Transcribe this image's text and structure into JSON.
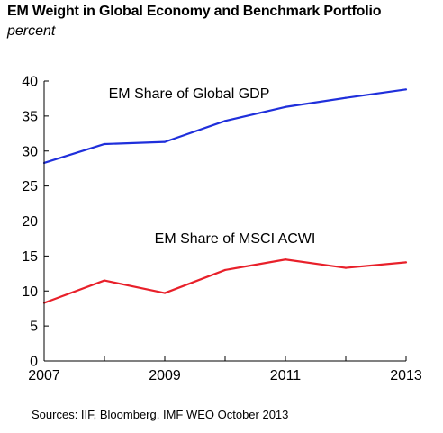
{
  "header": {
    "title": "EM Weight in Global Economy and Benchmark Portfolio",
    "subtitle": "percent"
  },
  "footer": {
    "source": "Sources: IIF, Bloomberg, IMF WEO October 2013"
  },
  "chart_data": {
    "type": "line",
    "title": "EM Weight in Global Economy and Benchmark Portfolio",
    "subtitle": "percent",
    "x": [
      2007,
      2008,
      2009,
      2010,
      2011,
      2012,
      2013
    ],
    "xlim": [
      2007,
      2013
    ],
    "xticks": [
      "2007",
      "2009",
      "2011",
      "2013"
    ],
    "ylim": [
      0,
      40
    ],
    "yticks": [
      "0",
      "5",
      "10",
      "15",
      "20",
      "25",
      "30",
      "35",
      "40"
    ],
    "grid": false,
    "series": [
      {
        "name": "EM Share of Global GDP",
        "color": "#1f2fdb",
        "values": [
          28.3,
          31.0,
          31.3,
          34.3,
          36.3,
          37.6,
          38.8
        ]
      },
      {
        "name": "EM Share of MSCI ACWI",
        "color": "#e8202a",
        "values": [
          8.3,
          11.5,
          9.7,
          13.0,
          14.5,
          13.3,
          14.1
        ]
      }
    ]
  }
}
